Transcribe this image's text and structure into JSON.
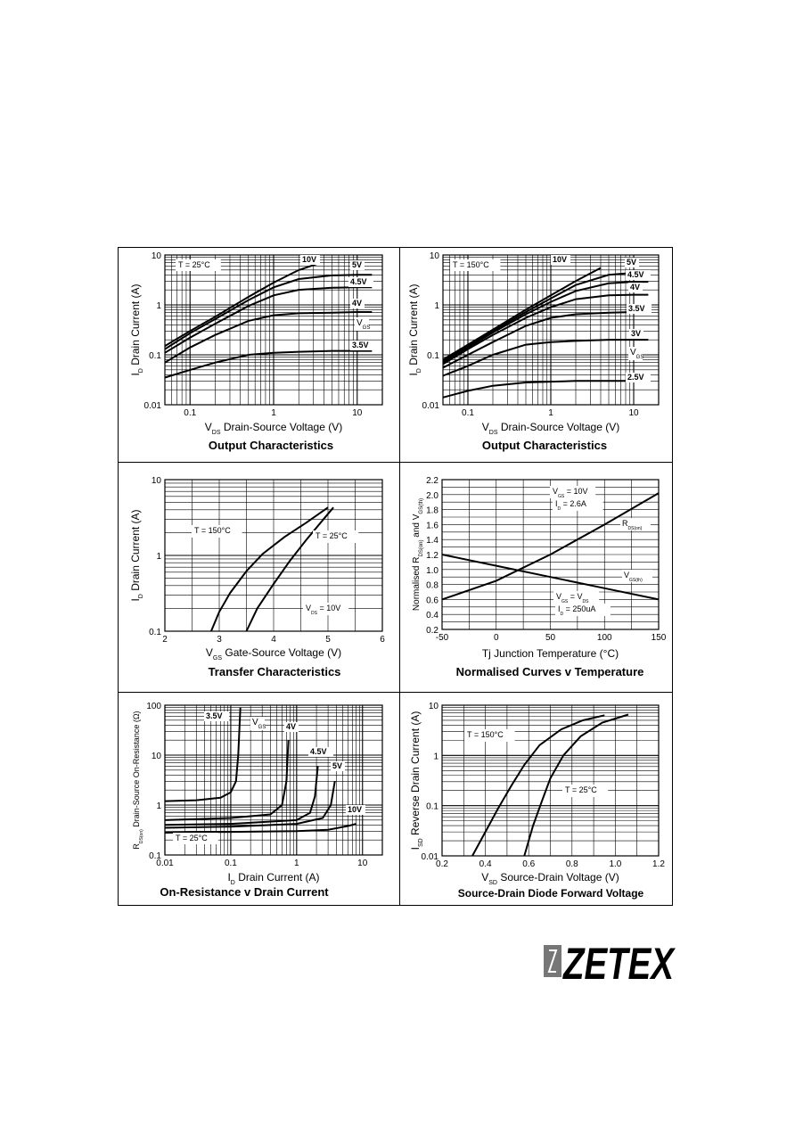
{
  "page": {
    "logo_text": "ZETEX"
  },
  "chart_data": [
    {
      "id": "out25",
      "type": "line",
      "title": "Output Characteristics",
      "xlabel_sym": "V",
      "xlabel_sub": "DS",
      "xlabel_text": "Drain-Source Voltage (V)",
      "ylabel_sym": "I",
      "ylabel_sub": "D",
      "ylabel_text": "Drain Current (A)",
      "xscale": "log",
      "yscale": "log",
      "xlim": [
        0.05,
        20
      ],
      "ylim": [
        0.01,
        10
      ],
      "xticks": [
        0.1,
        1,
        10
      ],
      "xtick_labels": [
        "0.1",
        "1",
        "10"
      ],
      "yticks": [
        0.01,
        0.1,
        1,
        10
      ],
      "ytick_labels": [
        "0.01",
        "0.1",
        "1",
        "10"
      ],
      "annotation": "T = 25°C",
      "vgs_label": {
        "sym": "V",
        "sub": "GS"
      },
      "series": [
        {
          "name": "10V",
          "x": [
            0.05,
            0.1,
            0.2,
            0.5,
            1,
            2,
            3.3
          ],
          "y": [
            0.15,
            0.3,
            0.58,
            1.45,
            2.8,
            5.0,
            6.6
          ]
        },
        {
          "name": "5V",
          "x": [
            0.05,
            0.1,
            0.2,
            0.5,
            1,
            2,
            5,
            10,
            15
          ],
          "y": [
            0.13,
            0.27,
            0.52,
            1.25,
            2.25,
            3.3,
            3.9,
            4.0,
            4.0
          ]
        },
        {
          "name": "4.5V",
          "x": [
            0.05,
            0.1,
            0.2,
            0.5,
            1,
            2,
            5,
            10,
            15
          ],
          "y": [
            0.11,
            0.22,
            0.42,
            0.95,
            1.55,
            2.0,
            2.2,
            2.25,
            2.25
          ]
        },
        {
          "name": "4V",
          "x": [
            0.05,
            0.1,
            0.2,
            0.5,
            1,
            2,
            5,
            10,
            15
          ],
          "y": [
            0.07,
            0.14,
            0.25,
            0.48,
            0.62,
            0.68,
            0.7,
            0.72,
            0.72
          ]
        },
        {
          "name": "3.5V",
          "x": [
            0.05,
            0.1,
            0.2,
            0.5,
            1,
            2,
            5,
            10,
            15
          ],
          "y": [
            0.035,
            0.05,
            0.07,
            0.1,
            0.11,
            0.115,
            0.12,
            0.12,
            0.12
          ]
        }
      ]
    },
    {
      "id": "out150",
      "type": "line",
      "title": "Output Characteristics",
      "xlabel_sym": "V",
      "xlabel_sub": "DS",
      "xlabel_text": "Drain-Source Voltage (V)",
      "ylabel_sym": "I",
      "ylabel_sub": "D",
      "ylabel_text": "Drain Current (A)",
      "xscale": "log",
      "yscale": "log",
      "xlim": [
        0.05,
        20
      ],
      "ylim": [
        0.01,
        10
      ],
      "xticks": [
        0.1,
        1,
        10
      ],
      "xtick_labels": [
        "0.1",
        "1",
        "10"
      ],
      "yticks": [
        0.01,
        0.1,
        1,
        10
      ],
      "ytick_labels": [
        "0.01",
        "0.1",
        "1",
        "10"
      ],
      "annotation": "T = 150°C",
      "vgs_label": {
        "sym": "V",
        "sub": "GS"
      },
      "series": [
        {
          "name": "10V",
          "x": [
            0.05,
            0.1,
            0.2,
            0.5,
            1,
            2,
            4
          ],
          "y": [
            0.08,
            0.16,
            0.32,
            0.8,
            1.55,
            3.0,
            5.5
          ]
        },
        {
          "name": "5V",
          "x": [
            0.05,
            0.1,
            0.2,
            0.5,
            1,
            2,
            5,
            10,
            15
          ],
          "y": [
            0.075,
            0.15,
            0.3,
            0.72,
            1.35,
            2.5,
            4.0,
            4.4,
            4.4
          ]
        },
        {
          "name": "4.5V",
          "x": [
            0.05,
            0.1,
            0.2,
            0.5,
            1,
            2,
            5,
            10,
            15
          ],
          "y": [
            0.07,
            0.14,
            0.28,
            0.65,
            1.15,
            1.9,
            2.7,
            2.9,
            2.9
          ]
        },
        {
          "name": "4V",
          "x": [
            0.05,
            0.1,
            0.2,
            0.5,
            1,
            2,
            5,
            10,
            15
          ],
          "y": [
            0.065,
            0.13,
            0.25,
            0.55,
            0.9,
            1.3,
            1.55,
            1.6,
            1.6
          ]
        },
        {
          "name": "3.5V",
          "x": [
            0.05,
            0.1,
            0.2,
            0.5,
            1,
            2,
            5,
            10,
            15
          ],
          "y": [
            0.055,
            0.1,
            0.18,
            0.38,
            0.55,
            0.65,
            0.7,
            0.72,
            0.72
          ]
        },
        {
          "name": "3V",
          "x": [
            0.05,
            0.1,
            0.2,
            0.5,
            1,
            2,
            5,
            10,
            15
          ],
          "y": [
            0.038,
            0.06,
            0.1,
            0.16,
            0.18,
            0.19,
            0.2,
            0.2,
            0.2
          ]
        },
        {
          "name": "2.5V",
          "x": [
            0.05,
            0.1,
            0.2,
            0.5,
            1,
            2,
            5,
            10,
            15
          ],
          "y": [
            0.014,
            0.019,
            0.024,
            0.028,
            0.029,
            0.03,
            0.03,
            0.03,
            0.03
          ]
        }
      ]
    },
    {
      "id": "transfer",
      "type": "line",
      "title": "Transfer Characteristics",
      "xlabel_sym": "V",
      "xlabel_sub": "GS",
      "xlabel_text": "Gate-Source Voltage (V)",
      "ylabel_sym": "I",
      "ylabel_sub": "D",
      "ylabel_text": "Drain Current (A)",
      "xscale": "linear",
      "yscale": "log",
      "xlim": [
        2,
        6
      ],
      "ylim": [
        0.1,
        10
      ],
      "xticks": [
        2,
        3,
        4,
        5,
        6
      ],
      "xtick_labels": [
        "2",
        "3",
        "4",
        "5",
        "6"
      ],
      "yticks": [
        0.1,
        1,
        10
      ],
      "ytick_labels": [
        "0.1",
        "1",
        "10"
      ],
      "annotations": [
        {
          "text": "T = 150°C"
        },
        {
          "text": "T = 25°C"
        },
        {
          "sym": "V",
          "sub": "DS",
          "text": "= 10V"
        }
      ],
      "series": [
        {
          "name": "T = 150°C",
          "x": [
            2.85,
            3.0,
            3.2,
            3.5,
            3.8,
            4.2,
            4.6,
            5.0
          ],
          "y": [
            0.1,
            0.18,
            0.32,
            0.62,
            1.05,
            1.75,
            2.7,
            4.3
          ]
        },
        {
          "name": "T = 25°C",
          "x": [
            3.5,
            3.7,
            4.0,
            4.3,
            4.6,
            4.9,
            5.1
          ],
          "y": [
            0.1,
            0.2,
            0.42,
            0.85,
            1.6,
            2.9,
            4.3
          ]
        }
      ]
    },
    {
      "id": "normtemp",
      "type": "line",
      "title": "Normalised Curves v Temperature",
      "xlabel_text": "Tj  Junction Temperature (°C)",
      "ylabel_text": "Normalised R",
      "ylabel_sub1": "DS(on)",
      "ylabel_mid": " and V",
      "ylabel_sub2": "GS(th)",
      "xscale": "linear",
      "yscale": "linear",
      "xlim": [
        -50,
        150
      ],
      "ylim": [
        0.2,
        2.2
      ],
      "xticks": [
        -50,
        0,
        50,
        100,
        150
      ],
      "xtick_labels": [
        "-50",
        "0",
        "50",
        "100",
        "150"
      ],
      "yticks": [
        0.2,
        0.4,
        0.6,
        0.8,
        1.0,
        1.2,
        1.4,
        1.6,
        1.8,
        2.0,
        2.2
      ],
      "ytick_labels": [
        "0.2",
        "0.4",
        "0.6",
        "0.8",
        "1.0",
        "1.2",
        "1.4",
        "1.6",
        "1.8",
        "2.0",
        "2.2"
      ],
      "annotations": [
        {
          "sym": "V",
          "sub": "GS",
          "text": "= 10V"
        },
        {
          "sym": "I",
          "sub": "D",
          "text": "= 2.6A"
        },
        {
          "sym": "V",
          "sub": "GS",
          "text": "= V",
          "sub2": "DS"
        },
        {
          "sym": "I",
          "sub": "D",
          "text": "= 250uA"
        }
      ],
      "series": [
        {
          "name": "R",
          "name_sub": "DS(on)",
          "x": [
            -50,
            0,
            50,
            100,
            150
          ],
          "y": [
            0.6,
            0.85,
            1.2,
            1.6,
            2.02
          ]
        },
        {
          "name": "V",
          "name_sub": "GS(th)",
          "x": [
            -50,
            0,
            50,
            100,
            150
          ],
          "y": [
            1.2,
            1.05,
            0.9,
            0.75,
            0.6
          ]
        }
      ]
    },
    {
      "id": "ronid",
      "type": "line",
      "title": "On-Resistance v Drain Current",
      "xlabel_sym": "I",
      "xlabel_sub": "D",
      "xlabel_text": "Drain Current (A)",
      "ylabel_sym": "R",
      "ylabel_sub": "DS(on)",
      "ylabel_text": "Drain-Source On-Resistance (Ω)",
      "xscale": "log",
      "yscale": "log",
      "xlim": [
        0.01,
        20
      ],
      "ylim": [
        0.1,
        100
      ],
      "xticks": [
        0.01,
        0.1,
        1,
        10
      ],
      "xtick_labels": [
        "0.01",
        "0.1",
        "1",
        "10"
      ],
      "yticks": [
        0.1,
        1,
        10,
        100
      ],
      "ytick_labels": [
        "0.1",
        "1",
        "10",
        "100"
      ],
      "annotation": "T = 25°C",
      "vgs_label": {
        "sym": "V",
        "sub": "GS"
      },
      "series": [
        {
          "name": "3.5V",
          "x": [
            0.01,
            0.03,
            0.07,
            0.1,
            0.12,
            0.13,
            0.14
          ],
          "y": [
            1.2,
            1.25,
            1.4,
            1.8,
            3,
            10,
            90
          ]
        },
        {
          "name": "4V",
          "x": [
            0.01,
            0.1,
            0.4,
            0.6,
            0.7,
            0.75
          ],
          "y": [
            0.5,
            0.55,
            0.65,
            1.0,
            3,
            20
          ]
        },
        {
          "name": "4.5V",
          "x": [
            0.01,
            0.1,
            1,
            1.6,
            1.9,
            2.1
          ],
          "y": [
            0.4,
            0.42,
            0.5,
            0.7,
            1.5,
            6
          ]
        },
        {
          "name": "5V",
          "x": [
            0.01,
            0.1,
            1,
            2.5,
            3.3,
            3.8
          ],
          "y": [
            0.35,
            0.37,
            0.42,
            0.55,
            1.0,
            3
          ]
        },
        {
          "name": "10V",
          "x": [
            0.01,
            0.1,
            1,
            3,
            6,
            8
          ],
          "y": [
            0.28,
            0.29,
            0.3,
            0.32,
            0.38,
            0.42
          ]
        }
      ]
    },
    {
      "id": "diode",
      "type": "line",
      "title": "Source-Drain Diode Forward Voltage",
      "xlabel_sym": "V",
      "xlabel_sub": "SD",
      "xlabel_text": "Source-Drain Voltage (V)",
      "ylabel_sym": "I",
      "ylabel_sub": "SD",
      "ylabel_text": "Reverse Drain Current (A)",
      "xscale": "linear",
      "yscale": "log",
      "xlim": [
        0.2,
        1.2
      ],
      "ylim": [
        0.01,
        10
      ],
      "xticks": [
        0.2,
        0.4,
        0.6,
        0.8,
        1.0,
        1.2
      ],
      "xtick_labels": [
        "0.2",
        "0.4",
        "0.6",
        "0.8",
        "1.0",
        "1.2"
      ],
      "yticks": [
        0.01,
        0.1,
        1,
        10
      ],
      "ytick_labels": [
        "0.01",
        "0.1",
        "1",
        "10"
      ],
      "annotations": [
        {
          "text": "T = 150°C"
        },
        {
          "text": "T = 25°C"
        }
      ],
      "series": [
        {
          "name": "T = 150°C",
          "x": [
            0.34,
            0.4,
            0.46,
            0.52,
            0.58,
            0.65,
            0.75,
            0.85,
            0.95
          ],
          "y": [
            0.01,
            0.03,
            0.09,
            0.25,
            0.65,
            1.6,
            3.3,
            5.0,
            6.3
          ]
        },
        {
          "name": "T = 25°C",
          "x": [
            0.58,
            0.62,
            0.66,
            0.7,
            0.76,
            0.84,
            0.94,
            1.06
          ],
          "y": [
            0.01,
            0.04,
            0.12,
            0.35,
            1.0,
            2.4,
            4.5,
            6.5
          ]
        }
      ]
    }
  ]
}
